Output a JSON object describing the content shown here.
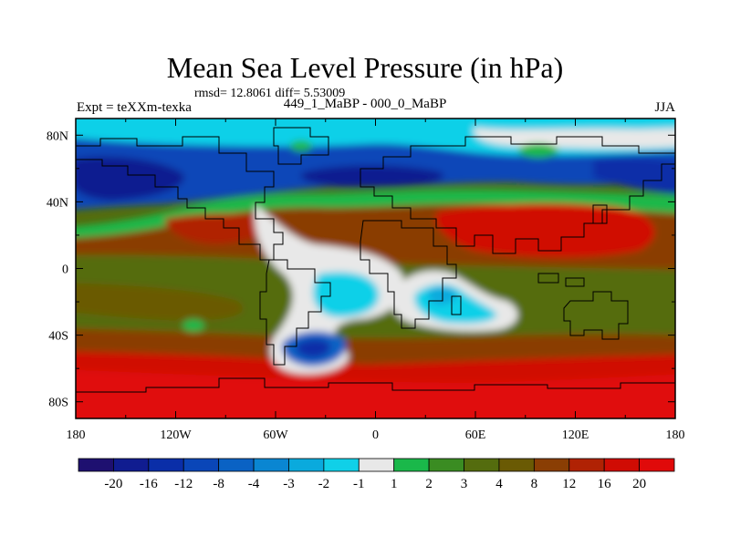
{
  "header": {
    "title": "Mean Sea Level Pressure (in hPa)",
    "stats": "rmsd= 12.8061 diff= 5.53009",
    "left_label": "Expt = teXXm-texka",
    "center_label": "449_1_MaBP - 000_0_MaBP",
    "right_label": "JJA"
  },
  "chart_data": {
    "type": "heatmap",
    "title": "Mean Sea Level Pressure (in hPa)",
    "xlabel": "",
    "ylabel": "",
    "xlim": [
      -180,
      180
    ],
    "ylim": [
      -90,
      90
    ],
    "x_ticks": [
      {
        "value": -180,
        "label": "180"
      },
      {
        "value": -120,
        "label": "120W"
      },
      {
        "value": -60,
        "label": "60W"
      },
      {
        "value": 0,
        "label": "0"
      },
      {
        "value": 60,
        "label": "60E"
      },
      {
        "value": 120,
        "label": "120E"
      },
      {
        "value": 180,
        "label": "180"
      }
    ],
    "y_ticks": [
      {
        "value": 80,
        "label": "80N"
      },
      {
        "value": 40,
        "label": "40N"
      },
      {
        "value": 0,
        "label": "0"
      },
      {
        "value": -40,
        "label": "40S"
      },
      {
        "value": -80,
        "label": "80S"
      }
    ],
    "colorbar": {
      "labels": [
        "-20",
        "-16",
        "-12",
        "-8",
        "-4",
        "-3",
        "-2",
        "-1",
        "1",
        "2",
        "3",
        "4",
        "8",
        "12",
        "16",
        "20"
      ],
      "colors": [
        "#1e1070",
        "#101c90",
        "#0a2ea8",
        "#0a46b8",
        "#0a62c4",
        "#0a86d2",
        "#0aaadd",
        "#10d0e8",
        "#e8e8e8",
        "#1ab84a",
        "#3a8c22",
        "#546c0e",
        "#6a5a04",
        "#8a3e04",
        "#b02204",
        "#d00c04",
        "#e00a0a"
      ]
    },
    "field_regions": [
      {
        "name": "antarctic-high",
        "lon": [
          -180,
          180
        ],
        "lat": [
          -90,
          -55
        ],
        "value": 20
      },
      {
        "name": "south-midlat-belt",
        "lon": [
          -180,
          180
        ],
        "lat": [
          -55,
          -30
        ],
        "value": 12
      },
      {
        "name": "north-pacific-low",
        "lon": [
          -180,
          -120
        ],
        "lat": [
          40,
          70
        ],
        "value": -20
      },
      {
        "name": "north-atlantic-low",
        "lon": [
          -60,
          0
        ],
        "lat": [
          45,
          70
        ],
        "value": -16
      },
      {
        "name": "asia-high",
        "lon": [
          90,
          150
        ],
        "lat": [
          20,
          40
        ],
        "value": 20
      },
      {
        "name": "south-atlantic-low",
        "lon": [
          -40,
          -20
        ],
        "lat": [
          -45,
          -35
        ],
        "value": -12
      },
      {
        "name": "equatorial-band",
        "lon": [
          -180,
          -40
        ],
        "lat": [
          -20,
          20
        ],
        "value": 4
      },
      {
        "name": "indian-ocean-low",
        "lon": [
          20,
          60
        ],
        "lat": [
          -20,
          -5
        ],
        "value": -3
      }
    ],
    "diff": 5.53009,
    "rmsd": 12.8061,
    "season": "JJA"
  }
}
